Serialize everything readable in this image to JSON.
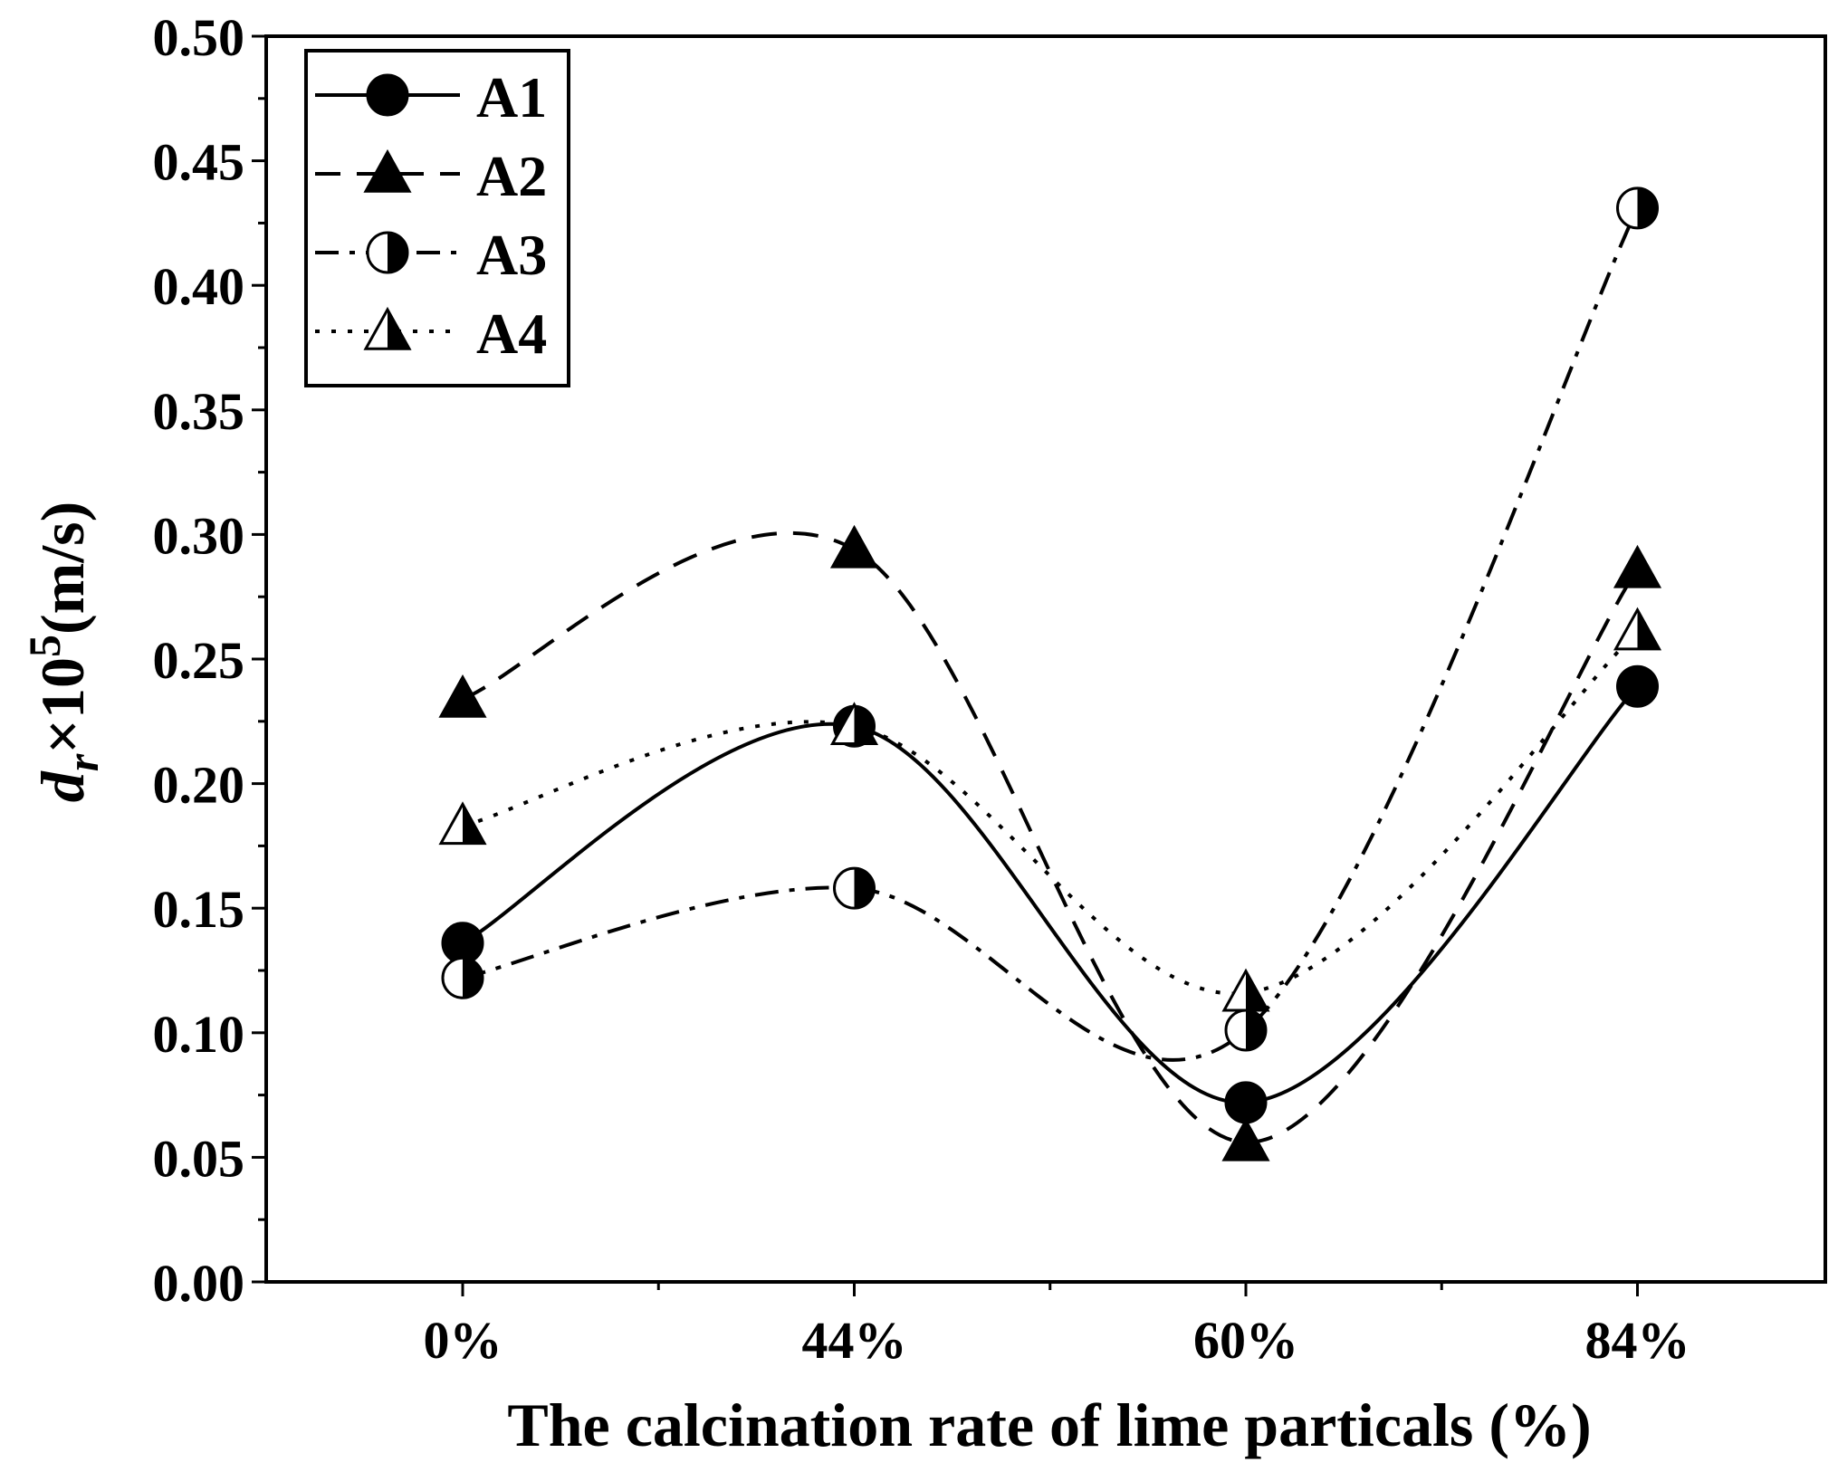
{
  "chart_data": {
    "type": "line",
    "title": "",
    "xlabel": "The calcination rate of lime particals (%)",
    "ylabel": {
      "var": "d",
      "sub": "r",
      "mid": "×10",
      "sup": "5",
      "unit": "(m/s)"
    },
    "categories": [
      "0%",
      "44%",
      "60%",
      "84%"
    ],
    "ylim": [
      0,
      0.5
    ],
    "yticks": [
      "0.00",
      "0.05",
      "0.10",
      "0.15",
      "0.20",
      "0.25",
      "0.30",
      "0.35",
      "0.40",
      "0.45",
      "0.50"
    ],
    "grid": false,
    "legend_position": "top-left",
    "series": [
      {
        "name": "A1",
        "values": [
          0.136,
          0.223,
          0.072,
          0.239
        ],
        "marker": "filled-circle",
        "line": "solid",
        "color": "#000000"
      },
      {
        "name": "A2",
        "values": [
          0.234,
          0.294,
          0.056,
          0.286
        ],
        "marker": "filled-triangle",
        "line": "dashed",
        "color": "#000000"
      },
      {
        "name": "A3",
        "values": [
          0.122,
          0.158,
          0.101,
          0.431
        ],
        "marker": "half-circle",
        "line": "dash-dot",
        "color": "#000000"
      },
      {
        "name": "A4",
        "values": [
          0.183,
          0.223,
          0.116,
          0.261
        ],
        "marker": "half-triangle",
        "line": "dotted",
        "color": "#000000"
      }
    ]
  }
}
